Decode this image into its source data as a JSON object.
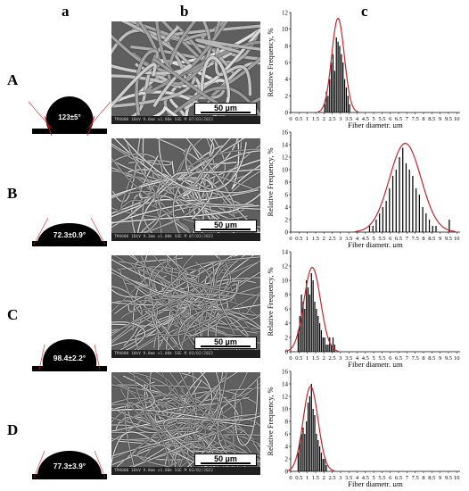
{
  "column_labels": [
    "a",
    "b",
    "c"
  ],
  "row_labels": [
    "A",
    "B",
    "C",
    "D"
  ],
  "contact_angles": [
    "123±5°",
    "72.3±0.9°",
    "98.4±2.2°",
    "77.3±3.9°"
  ],
  "sem": {
    "scale_label": "50 µm",
    "footer": [
      "TM4000 10kV 9.6mm x1.00k SSE M 07/03/2022",
      "TM4000 10kV 9.3mm x1.00k SSE M 07/03/2022",
      "TM4000 10kV 9.8mm x1.00k SSE M 03/02/2022",
      "TM4000 10kV 9.8mm x1.00k SSE M 03/02/2022"
    ]
  },
  "colors": {
    "bars": "#000000",
    "fit_curve": "#c0262c",
    "drop": "#000000",
    "tangent": "#e02020"
  },
  "chart_data": [
    {
      "type": "bar",
      "xlabel": "Fiber diametr, µm",
      "ylabel": "Relative Frequency, %",
      "xlim": [
        0,
        10.2
      ],
      "ylim": [
        0,
        12
      ],
      "yticks": [
        0,
        2,
        4,
        6,
        8,
        10,
        12
      ],
      "xticks": [
        "0",
        "0.5",
        "1",
        "1.5",
        "2",
        "2.5",
        "3",
        "3.5",
        "4",
        "4.5",
        "5",
        "5.5",
        "6",
        "6.5",
        "7",
        "7.5",
        "8",
        "8.5",
        "9",
        "9.5",
        "10"
      ],
      "x": [
        2.05,
        2.15,
        2.25,
        2.35,
        2.45,
        2.55,
        2.65,
        2.75,
        2.85,
        2.95,
        3.05,
        3.15,
        3.25,
        3.35,
        3.45,
        3.55
      ],
      "values": [
        1,
        2.5,
        2,
        4,
        6,
        7,
        5,
        9,
        8.5,
        8,
        7,
        6,
        4,
        3,
        2,
        1
      ],
      "fit": {
        "mean": 2.85,
        "sd": 0.38,
        "peak": 11.3
      }
    },
    {
      "type": "bar",
      "xlabel": "Fiber diametr, µm",
      "ylabel": "Relative Frequency, %",
      "xlim": [
        0,
        10.2
      ],
      "ylim": [
        0,
        16
      ],
      "yticks": [
        0,
        2,
        4,
        6,
        8,
        10,
        12,
        14,
        16
      ],
      "xticks": [
        "0",
        "0.5",
        "1",
        "1.5",
        "2",
        "2.5",
        "3",
        "3.5",
        "4",
        "4.5",
        "5",
        "5.5",
        "6",
        "6.5",
        "7",
        "7.5",
        "8",
        "8.5",
        "9",
        "9.5",
        "10"
      ],
      "x": [
        4.75,
        4.95,
        5.15,
        5.35,
        5.55,
        5.75,
        5.95,
        6.15,
        6.35,
        6.55,
        6.75,
        6.95,
        7.15,
        7.35,
        7.55,
        7.75,
        7.95,
        8.15,
        8.35,
        8.55,
        8.75,
        9.55
      ],
      "values": [
        1,
        1,
        2,
        3,
        4,
        5,
        7,
        9,
        10,
        12,
        13.5,
        11,
        10,
        9,
        7,
        6,
        4,
        3,
        2,
        1,
        1,
        2
      ],
      "fit": {
        "mean": 6.9,
        "sd": 0.95,
        "peak": 14.2
      }
    },
    {
      "type": "bar",
      "xlabel": "Fiber diametr, µm",
      "ylabel": "Relative Frequency, %",
      "xlim": [
        0,
        10.2
      ],
      "ylim": [
        0,
        14
      ],
      "yticks": [
        0,
        2,
        4,
        6,
        8,
        10,
        12,
        14
      ],
      "xticks": [
        "0",
        "0.5",
        "1",
        "1.5",
        "2",
        "2.5",
        "3",
        "3.5",
        "4",
        "4.5",
        "5",
        "5.5",
        "6",
        "6.5",
        "7",
        "7.5",
        "8",
        "8.5",
        "9",
        "9.5",
        "10"
      ],
      "x": [
        0.45,
        0.55,
        0.65,
        0.75,
        0.85,
        0.95,
        1.05,
        1.15,
        1.25,
        1.35,
        1.45,
        1.55,
        1.65,
        1.75,
        1.85,
        1.95,
        2.05,
        2.15,
        2.25,
        2.35,
        2.45,
        2.55,
        2.65
      ],
      "values": [
        3,
        5,
        8,
        7,
        6,
        10,
        9,
        8,
        11,
        10,
        7,
        6,
        5,
        4,
        3,
        2,
        2,
        1,
        1,
        2,
        1,
        2,
        1
      ],
      "fit": {
        "mean": 1.3,
        "sd": 0.5,
        "peak": 11.8
      }
    },
    {
      "type": "bar",
      "xlabel": "Fiber diametr, µm",
      "ylabel": "Relative Frequency, %",
      "xlim": [
        0,
        10.2
      ],
      "ylim": [
        0,
        16
      ],
      "yticks": [
        0,
        2,
        4,
        6,
        8,
        10,
        12,
        14,
        16
      ],
      "xticks": [
        "0",
        "0.5",
        "1",
        "1.5",
        "2",
        "2.5",
        "3",
        "3.5",
        "4",
        "4.5",
        "5",
        "5.5",
        "6",
        "6.5",
        "7",
        "7.5",
        "8",
        "8.5",
        "9",
        "9.5",
        "10"
      ],
      "x": [
        0.45,
        0.55,
        0.65,
        0.75,
        0.85,
        0.95,
        1.05,
        1.15,
        1.25,
        1.35,
        1.45,
        1.55,
        1.65,
        1.75,
        1.85,
        1.95,
        2.05,
        2.15
      ],
      "values": [
        3,
        5,
        6,
        7,
        6,
        8,
        11,
        12,
        14,
        10,
        9,
        6,
        5,
        4,
        3,
        2,
        2,
        1
      ],
      "fit": {
        "mean": 1.2,
        "sd": 0.45,
        "peak": 13.6
      }
    }
  ]
}
